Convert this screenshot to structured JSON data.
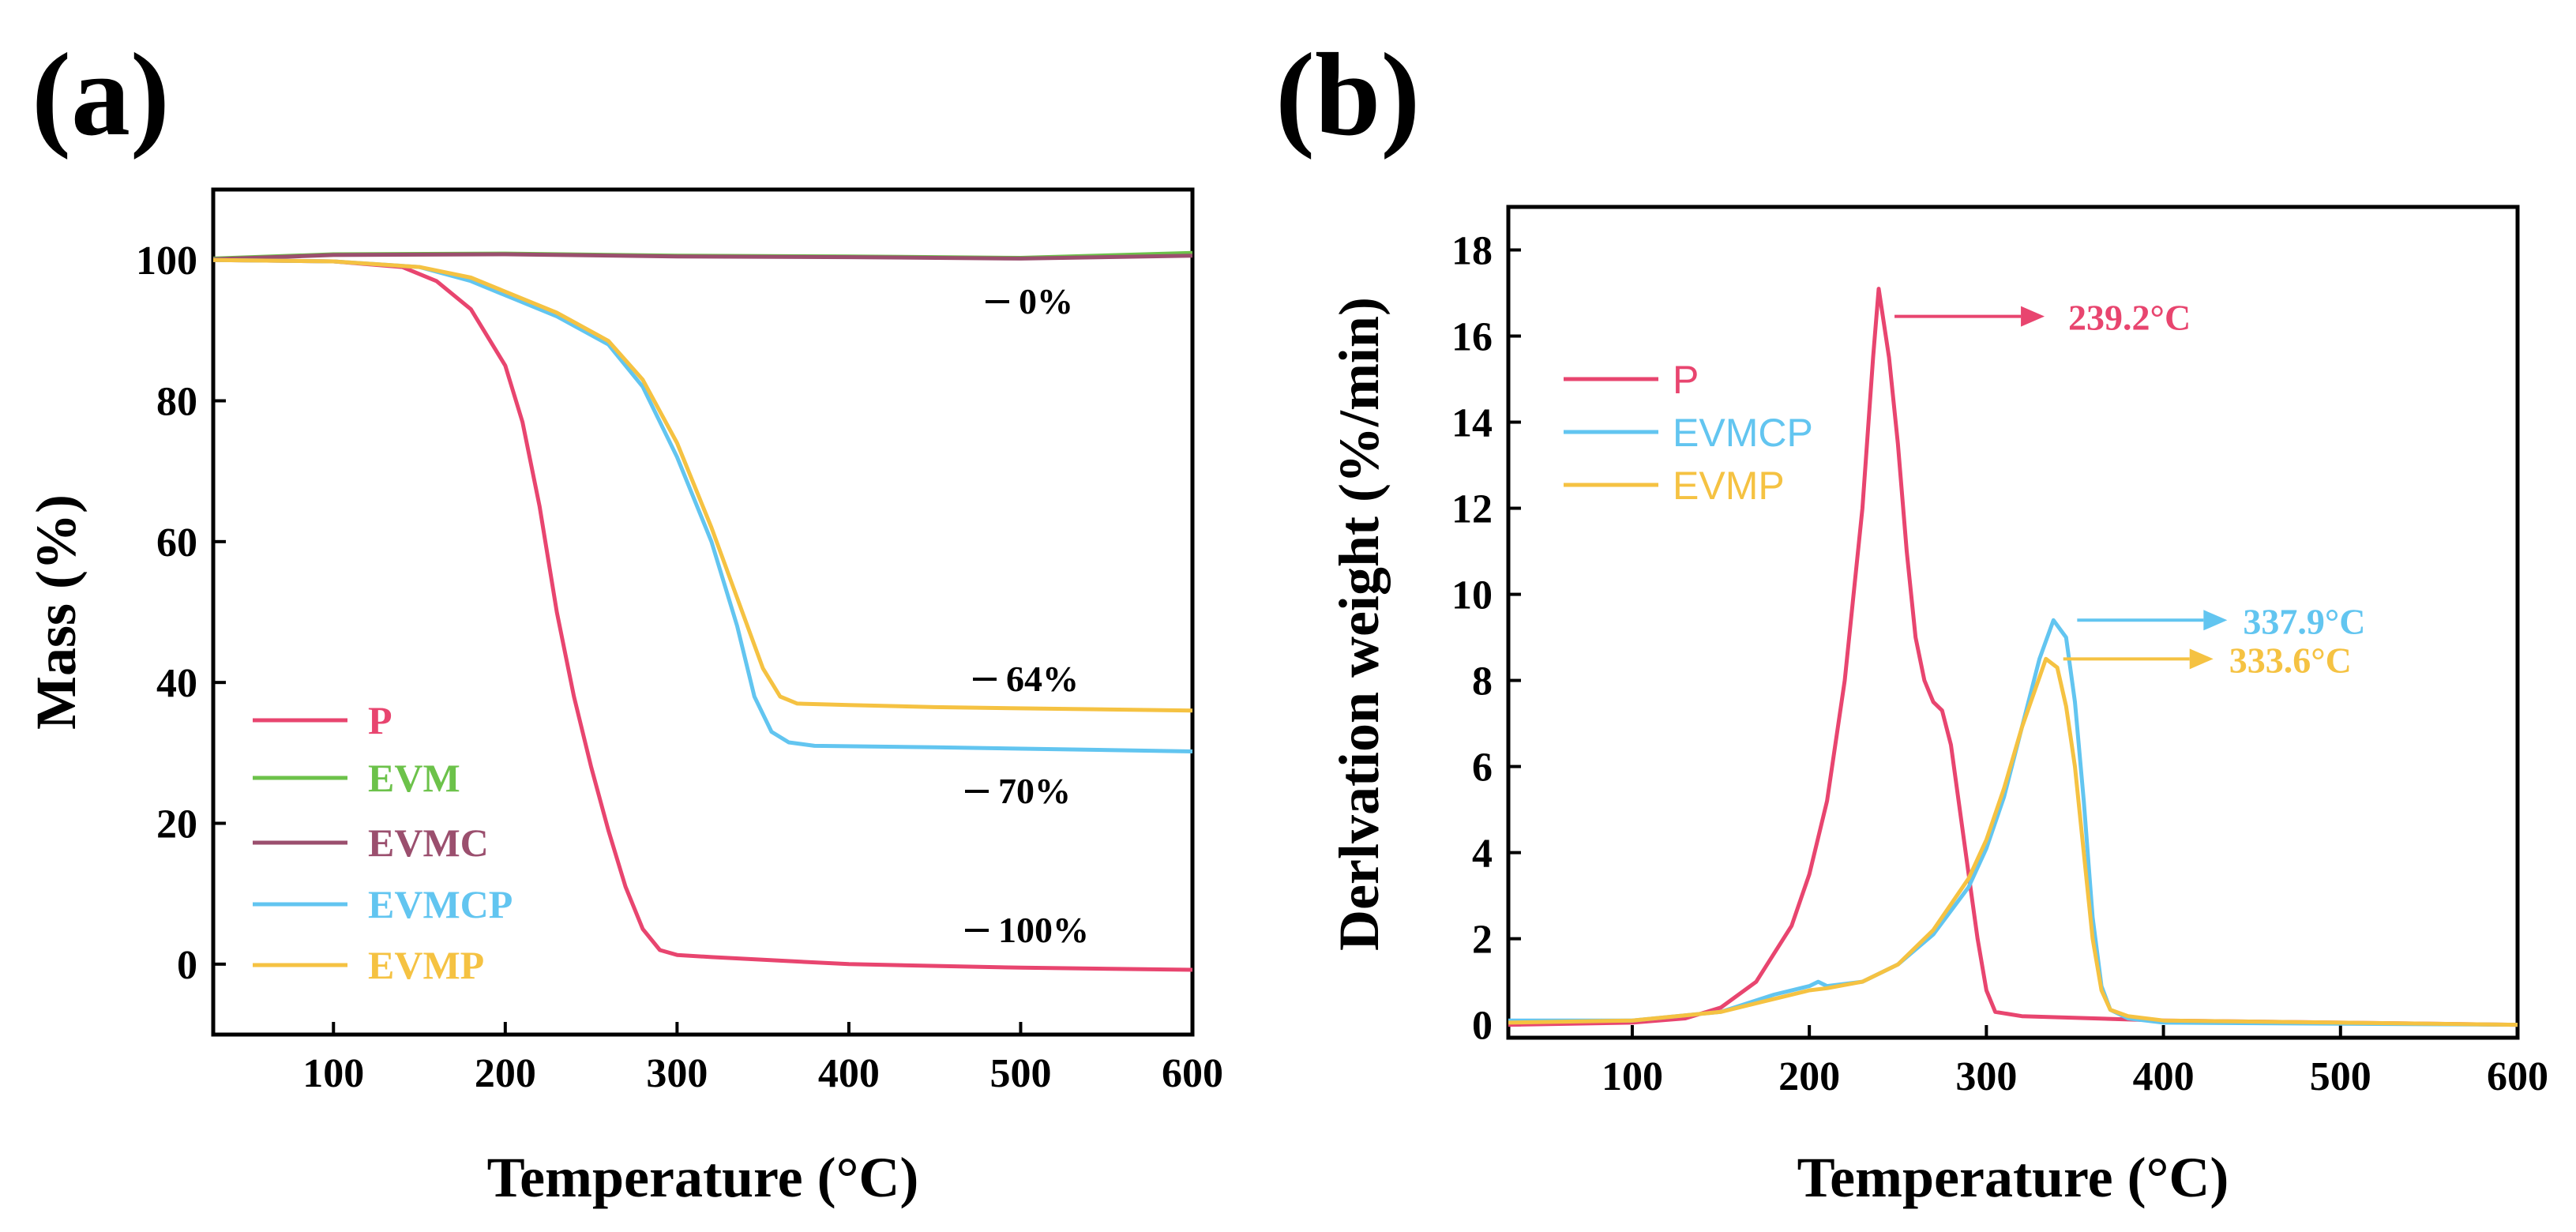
{
  "chart_data": [
    {
      "panel": "(a)",
      "type": "line",
      "xlabel": "Temperature (°C)",
      "ylabel": "Mass (%)",
      "xlim": [
        30,
        600
      ],
      "ylim": [
        -10,
        110
      ],
      "xticks": [
        100,
        200,
        300,
        400,
        500,
        600
      ],
      "yticks": [
        0,
        20,
        40,
        60,
        80,
        100
      ],
      "legend_position": "bottom-left",
      "series": [
        {
          "name": "P",
          "color": "#e8456f",
          "x": [
            30,
            100,
            140,
            160,
            180,
            200,
            210,
            220,
            230,
            240,
            250,
            260,
            270,
            280,
            290,
            300,
            320,
            360,
            400,
            500,
            600
          ],
          "y": [
            100,
            99.8,
            99,
            97,
            93,
            85,
            77,
            65,
            50,
            38,
            28,
            19,
            11,
            5,
            2,
            1.3,
            1,
            0.5,
            0,
            -0.5,
            -0.8
          ]
        },
        {
          "name": "EVM",
          "color": "#6cc24a",
          "x": [
            30,
            100,
            200,
            300,
            400,
            500,
            600
          ],
          "y": [
            100.2,
            100.8,
            100.9,
            100.6,
            100.5,
            100.3,
            101
          ]
        },
        {
          "name": "EVMC",
          "color": "#9b4f6e",
          "x": [
            30,
            100,
            200,
            300,
            400,
            500,
            600
          ],
          "y": [
            100.1,
            100.7,
            100.8,
            100.5,
            100.4,
            100.2,
            100.6
          ]
        },
        {
          "name": "EVMCP",
          "color": "#62c5f0",
          "x": [
            30,
            100,
            150,
            180,
            200,
            230,
            260,
            280,
            300,
            320,
            335,
            345,
            355,
            365,
            380,
            450,
            600
          ],
          "y": [
            100,
            99.8,
            99,
            97,
            95,
            92,
            88,
            82,
            72,
            60,
            48,
            38,
            33,
            31.5,
            31,
            30.8,
            30.2
          ]
        },
        {
          "name": "EVMP",
          "color": "#f5c242",
          "x": [
            30,
            100,
            150,
            180,
            200,
            230,
            260,
            280,
            300,
            320,
            335,
            350,
            360,
            370,
            400,
            450,
            600
          ],
          "y": [
            100,
            99.8,
            99,
            97.5,
            95.5,
            92.5,
            88.5,
            83,
            74,
            62,
            52,
            42,
            38,
            37,
            36.8,
            36.5,
            36
          ]
        }
      ],
      "annotations": [
        "0%",
        "64%",
        "70%",
        "100%"
      ]
    },
    {
      "panel": "(b)",
      "type": "line",
      "xlabel": "Temperature (°C)",
      "ylabel": "Derlvation weight (%/min)",
      "xlim": [
        30,
        600
      ],
      "ylim": [
        -0.3,
        19
      ],
      "xticks": [
        100,
        200,
        300,
        400,
        500,
        600
      ],
      "yticks": [
        0,
        2,
        4,
        6,
        8,
        10,
        12,
        14,
        16,
        18
      ],
      "legend_position": "top-left",
      "series": [
        {
          "name": "P",
          "color": "#e8456f",
          "x": [
            30,
            100,
            130,
            150,
            170,
            190,
            200,
            210,
            220,
            230,
            236,
            239.2,
            245,
            250,
            255,
            260,
            265,
            270,
            275,
            280,
            285,
            290,
            295,
            300,
            305,
            320,
            400,
            600
          ],
          "y": [
            0,
            0.05,
            0.15,
            0.4,
            1.0,
            2.3,
            3.5,
            5.2,
            8.0,
            12.0,
            15.5,
            17.1,
            15.5,
            13.5,
            11.0,
            9.0,
            8.0,
            7.5,
            7.3,
            6.5,
            5.0,
            3.5,
            2.0,
            0.8,
            0.3,
            0.2,
            0.1,
            0
          ]
        },
        {
          "name": "EVMCP",
          "color": "#62c5f0",
          "x": [
            30,
            100,
            150,
            180,
            200,
            205,
            210,
            230,
            250,
            270,
            290,
            300,
            310,
            320,
            330,
            337.9,
            345,
            350,
            355,
            360,
            365,
            370,
            380,
            400,
            600
          ],
          "y": [
            0.1,
            0.1,
            0.3,
            0.7,
            0.9,
            1.0,
            0.9,
            1.0,
            1.4,
            2.1,
            3.2,
            4.1,
            5.3,
            6.9,
            8.5,
            9.4,
            9.0,
            7.5,
            5.2,
            2.5,
            0.9,
            0.35,
            0.15,
            0.05,
            0
          ]
        },
        {
          "name": "EVMP",
          "color": "#f5c242",
          "x": [
            30,
            100,
            150,
            180,
            200,
            210,
            230,
            250,
            270,
            290,
            300,
            310,
            320,
            333.6,
            340,
            345,
            350,
            355,
            360,
            365,
            370,
            380,
            400,
            600
          ],
          "y": [
            0.05,
            0.1,
            0.3,
            0.6,
            0.8,
            0.85,
            1.0,
            1.4,
            2.2,
            3.4,
            4.3,
            5.5,
            6.9,
            8.5,
            8.3,
            7.4,
            6.0,
            4.0,
            2.0,
            0.8,
            0.35,
            0.2,
            0.1,
            0
          ]
        }
      ],
      "peak_labels": [
        {
          "series": "P",
          "text": "239.2°C",
          "x": 239.2,
          "y": 17.1,
          "color": "#e8456f"
        },
        {
          "series": "EVMCP",
          "text": "337.9°C",
          "x": 337.9,
          "y": 9.4,
          "color": "#62c5f0"
        },
        {
          "series": "EVMP",
          "text": "333.6°C",
          "x": 333.6,
          "y": 8.5,
          "color": "#f5c242"
        }
      ]
    }
  ]
}
